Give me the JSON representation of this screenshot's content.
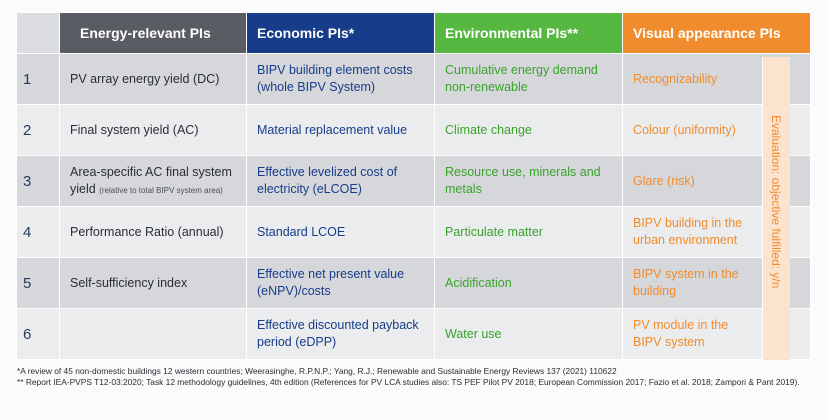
{
  "headers": {
    "energy": "Energy-relevant PIs",
    "economic": "Economic PIs*",
    "environmental": "Environmental PIs**",
    "visual": "Visual appearance PIs"
  },
  "rows": [
    {
      "num": "1",
      "energy": "PV array energy yield (DC)",
      "energy_note": "",
      "economic": "BIPV building element costs (whole BIPV System)",
      "environmental": "Cumulative energy demand non-renewable",
      "visual": "Recognizability"
    },
    {
      "num": "2",
      "energy": "Final system yield (AC)",
      "energy_note": "",
      "economic": "Material replacement value",
      "environmental": "Climate change",
      "visual": "Colour (uniformity)"
    },
    {
      "num": "3",
      "energy": "Area-specific AC final system yield",
      "energy_note": "(relative to total BIPV system area)",
      "economic": "Effective levelized cost of electricity (eLCOE)",
      "environmental": "Resource use, minerals and metals",
      "visual": "Glare (risk)"
    },
    {
      "num": "4",
      "energy": "Performance Ratio (annual)",
      "energy_note": "",
      "economic": "Standard LCOE",
      "environmental": "Particulate matter",
      "visual": "BIPV building in the urban environment"
    },
    {
      "num": "5",
      "energy": "Self-sufficiency index",
      "energy_note": "",
      "economic": "Effective net present value (eNPV)/costs",
      "environmental": "Acidification",
      "visual": "BIPV system in the building"
    },
    {
      "num": "6",
      "energy": "",
      "energy_note": "",
      "economic": "Effective discounted payback period (eDPP)",
      "environmental": "Water use",
      "visual": "PV module in the BIPV system"
    }
  ],
  "evaluation_label": "Evaluation: objective fulfilled: y/n",
  "footnotes": {
    "note1": "*A review of 45 non-domestic buildings 12 western countries; Weerasinghe, R.P.N.P.; Yang, R.J.; Renewable and Sustainable Energy Reviews 137 (2021) 110622",
    "note2": "** Report IEA-PVPS T12-03:2020; Task 12 methodology guidelines, 4th edition (References for PV LCA studies also: TS PEF Pilot PV 2018; European Commission 2017; Fazio et al. 2018; Zampori & Pant 2019)."
  },
  "colors": {
    "energy_header": "#5a5c63",
    "economic_header": "#173c8a",
    "environmental_header": "#57b841",
    "visual_header": "#f08c2d"
  }
}
